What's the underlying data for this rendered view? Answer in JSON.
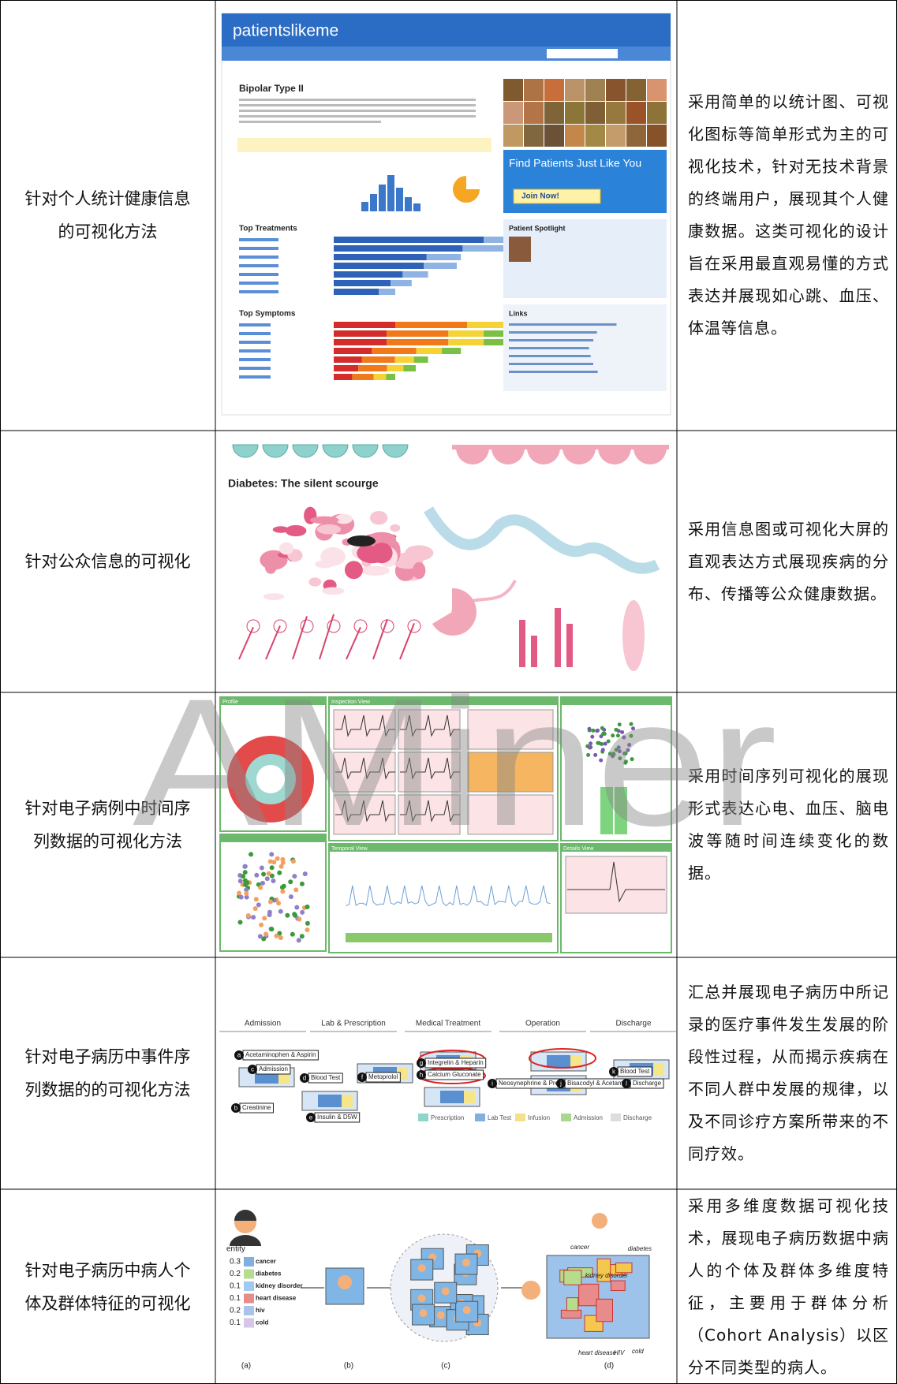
{
  "watermark": "AMiner",
  "table": {
    "rows": [
      {
        "label": "针对个人统计健康信息的可视化方法",
        "description": "采用简单的以统计图、可视化图标等简单形式为主的可视化技术，针对无技术背景的终端用户，展现其个人健康数据。这类可视化的设计旨在采用最直观易懂的方式表达并展现如心跳、血压、体温等信息。",
        "figure": {
          "logo": "patientslikeme",
          "title": "Bipolar Type II",
          "treatments_heading": "Top Treatments",
          "symptoms_heading": "Top Symptoms",
          "promo": "Find Patients Just Like You",
          "button": "Join Now!",
          "spotlight": "Patient Spotlight",
          "links": "Links"
        }
      },
      {
        "label": "针对公众信息的可视化",
        "description": "采用信息图或可视化大屏的直观表达方式展现疾病的分布、传播等公众健康数据。",
        "figure": {
          "title": "Diabetes: The silent scourge"
        }
      },
      {
        "label": "针对电子病例中时间序列数据的可视化方法",
        "description": "采用时间序列可视化的展现形式表达心电、血压、脑电波等随时间连续变化的数据。",
        "figure": {
          "panels": [
            "Profile",
            "Inspection View",
            "Temporal View",
            "Details View"
          ]
        }
      },
      {
        "label": "针对电子病历中事件序列数据的的可视化方法",
        "description": "汇总并展现电子病历中所记录的医疗事件发生发展的阶段性过程，从而揭示疾病在不同人群中发展的规律，以及不同诊疗方案所带来的不同疗效。",
        "figure": {
          "stages": [
            "Admission",
            "Lab & Prescription",
            "Medical Treatment",
            "Operation",
            "Discharge"
          ],
          "events": [
            {
              "letter": "a",
              "label": "Acetaminophen & Aspirin"
            },
            {
              "letter": "c",
              "label": "Admission"
            },
            {
              "letter": "b",
              "label": "Creatinine"
            },
            {
              "letter": "d",
              "label": "Blood Test"
            },
            {
              "letter": "e",
              "label": "Insulin & D5W"
            },
            {
              "letter": "f",
              "label": "Metoprolol"
            },
            {
              "letter": "g",
              "label": "Integrelin & Heparin"
            },
            {
              "letter": "h",
              "label": "Calcium Gluconate"
            },
            {
              "letter": "i",
              "label": "Neosynephrine & Propofol & D5W"
            },
            {
              "letter": "j",
              "label": "Bisacodyl & Acetaminophen"
            },
            {
              "letter": "k",
              "label": "Blood Test"
            },
            {
              "letter": "l",
              "label": "Discharge"
            }
          ],
          "legend": [
            "Prescription",
            "Lab Test",
            "Infusion",
            "Admission",
            "Discharge"
          ]
        }
      },
      {
        "label": "针对电子病历中病人个体及群体特征的可视化",
        "description": "采用多维度数据可视化技术，展现电子病历数据中病人的个体及群体多维度特征，主要用于群体分析（Cohort Analysis）以区分不同类型的病人。",
        "figure": {
          "entity_heading": "entity",
          "entities": [
            {
              "weight": 0.3,
              "name": "cancer"
            },
            {
              "weight": 0.2,
              "name": "diabetes"
            },
            {
              "weight": 0.1,
              "name": "kidney disorder"
            },
            {
              "weight": 0.1,
              "name": "heart disease"
            },
            {
              "weight": 0.2,
              "name": "hiv"
            },
            {
              "weight": 0.1,
              "name": "cold"
            }
          ],
          "panel_labels": [
            "(a)",
            "(b)",
            "(c)",
            "(d)"
          ],
          "dimensions": [
            "cancer",
            "diabetes",
            "kidney disorder",
            "heart disease",
            "HIV",
            "cold"
          ]
        }
      }
    ]
  }
}
